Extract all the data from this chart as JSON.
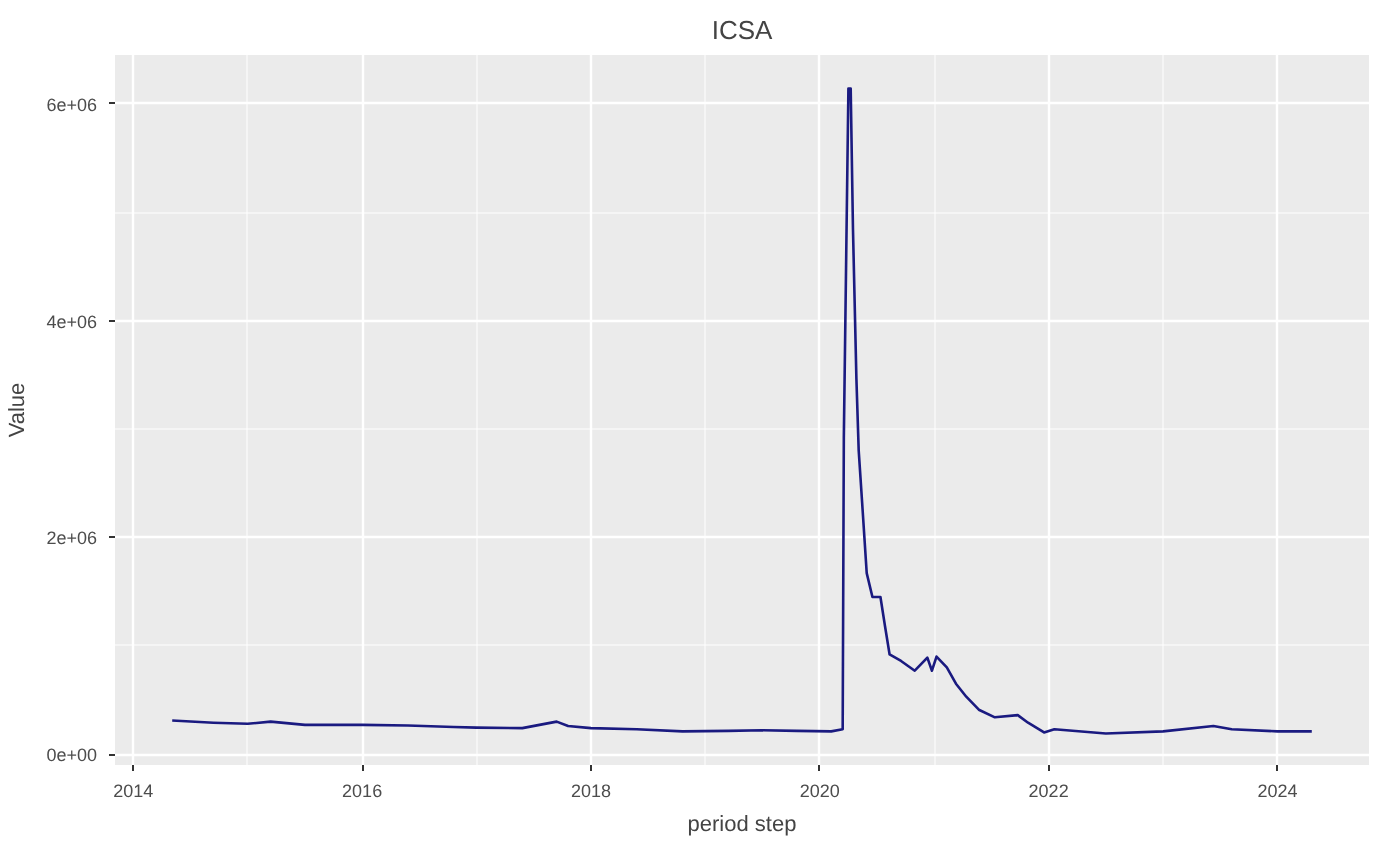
{
  "chart_data": {
    "type": "line",
    "title": "ICSA",
    "xlabel": "period step",
    "ylabel": "Value",
    "xlim": [
      2013.84,
      2024.8
    ],
    "ylim": [
      -100000,
      6450000
    ],
    "xticks": [
      2014,
      2016,
      2018,
      2020,
      2022,
      2024
    ],
    "yticks": [
      {
        "value": 0,
        "label": "0e+00"
      },
      {
        "value": 2000000,
        "label": "2e+06"
      },
      {
        "value": 4000000,
        "label": "4e+06"
      },
      {
        "value": 6000000,
        "label": "6e+06"
      }
    ],
    "grid": true,
    "line_style": "solid",
    "x": [
      2014.34,
      2014.7,
      2015.0,
      2015.2,
      2015.5,
      2016.0,
      2016.4,
      2016.8,
      2017.0,
      2017.4,
      2017.7,
      2017.8,
      2018.0,
      2018.4,
      2018.8,
      2019.2,
      2019.5,
      2019.8,
      2020.1,
      2020.2,
      2020.21,
      2020.25,
      2020.27,
      2020.29,
      2020.32,
      2020.34,
      2020.37,
      2020.41,
      2020.46,
      2020.53,
      2020.57,
      2020.61,
      2020.71,
      2020.83,
      2020.94,
      2020.98,
      2021.02,
      2021.11,
      2021.19,
      2021.28,
      2021.39,
      2021.53,
      2021.73,
      2021.82,
      2021.96,
      2022.05,
      2022.5,
      2023.0,
      2023.44,
      2023.6,
      2024.0,
      2024.3
    ],
    "series": [
      {
        "color": "#1a1a80",
        "values": [
          310000,
          290000,
          280000,
          300000,
          270000,
          270000,
          265000,
          250000,
          245000,
          240000,
          300000,
          260000,
          240000,
          230000,
          210000,
          215000,
          220000,
          215000,
          210000,
          230000,
          2920000,
          6140000,
          6140000,
          4840000,
          3460000,
          2800000,
          2320000,
          1670000,
          1450000,
          1450000,
          1180000,
          920000,
          860000,
          770000,
          890000,
          770000,
          900000,
          800000,
          650000,
          530000,
          410000,
          340000,
          360000,
          290000,
          200000,
          230000,
          190000,
          210000,
          260000,
          230000,
          210000,
          210000
        ]
      }
    ]
  }
}
